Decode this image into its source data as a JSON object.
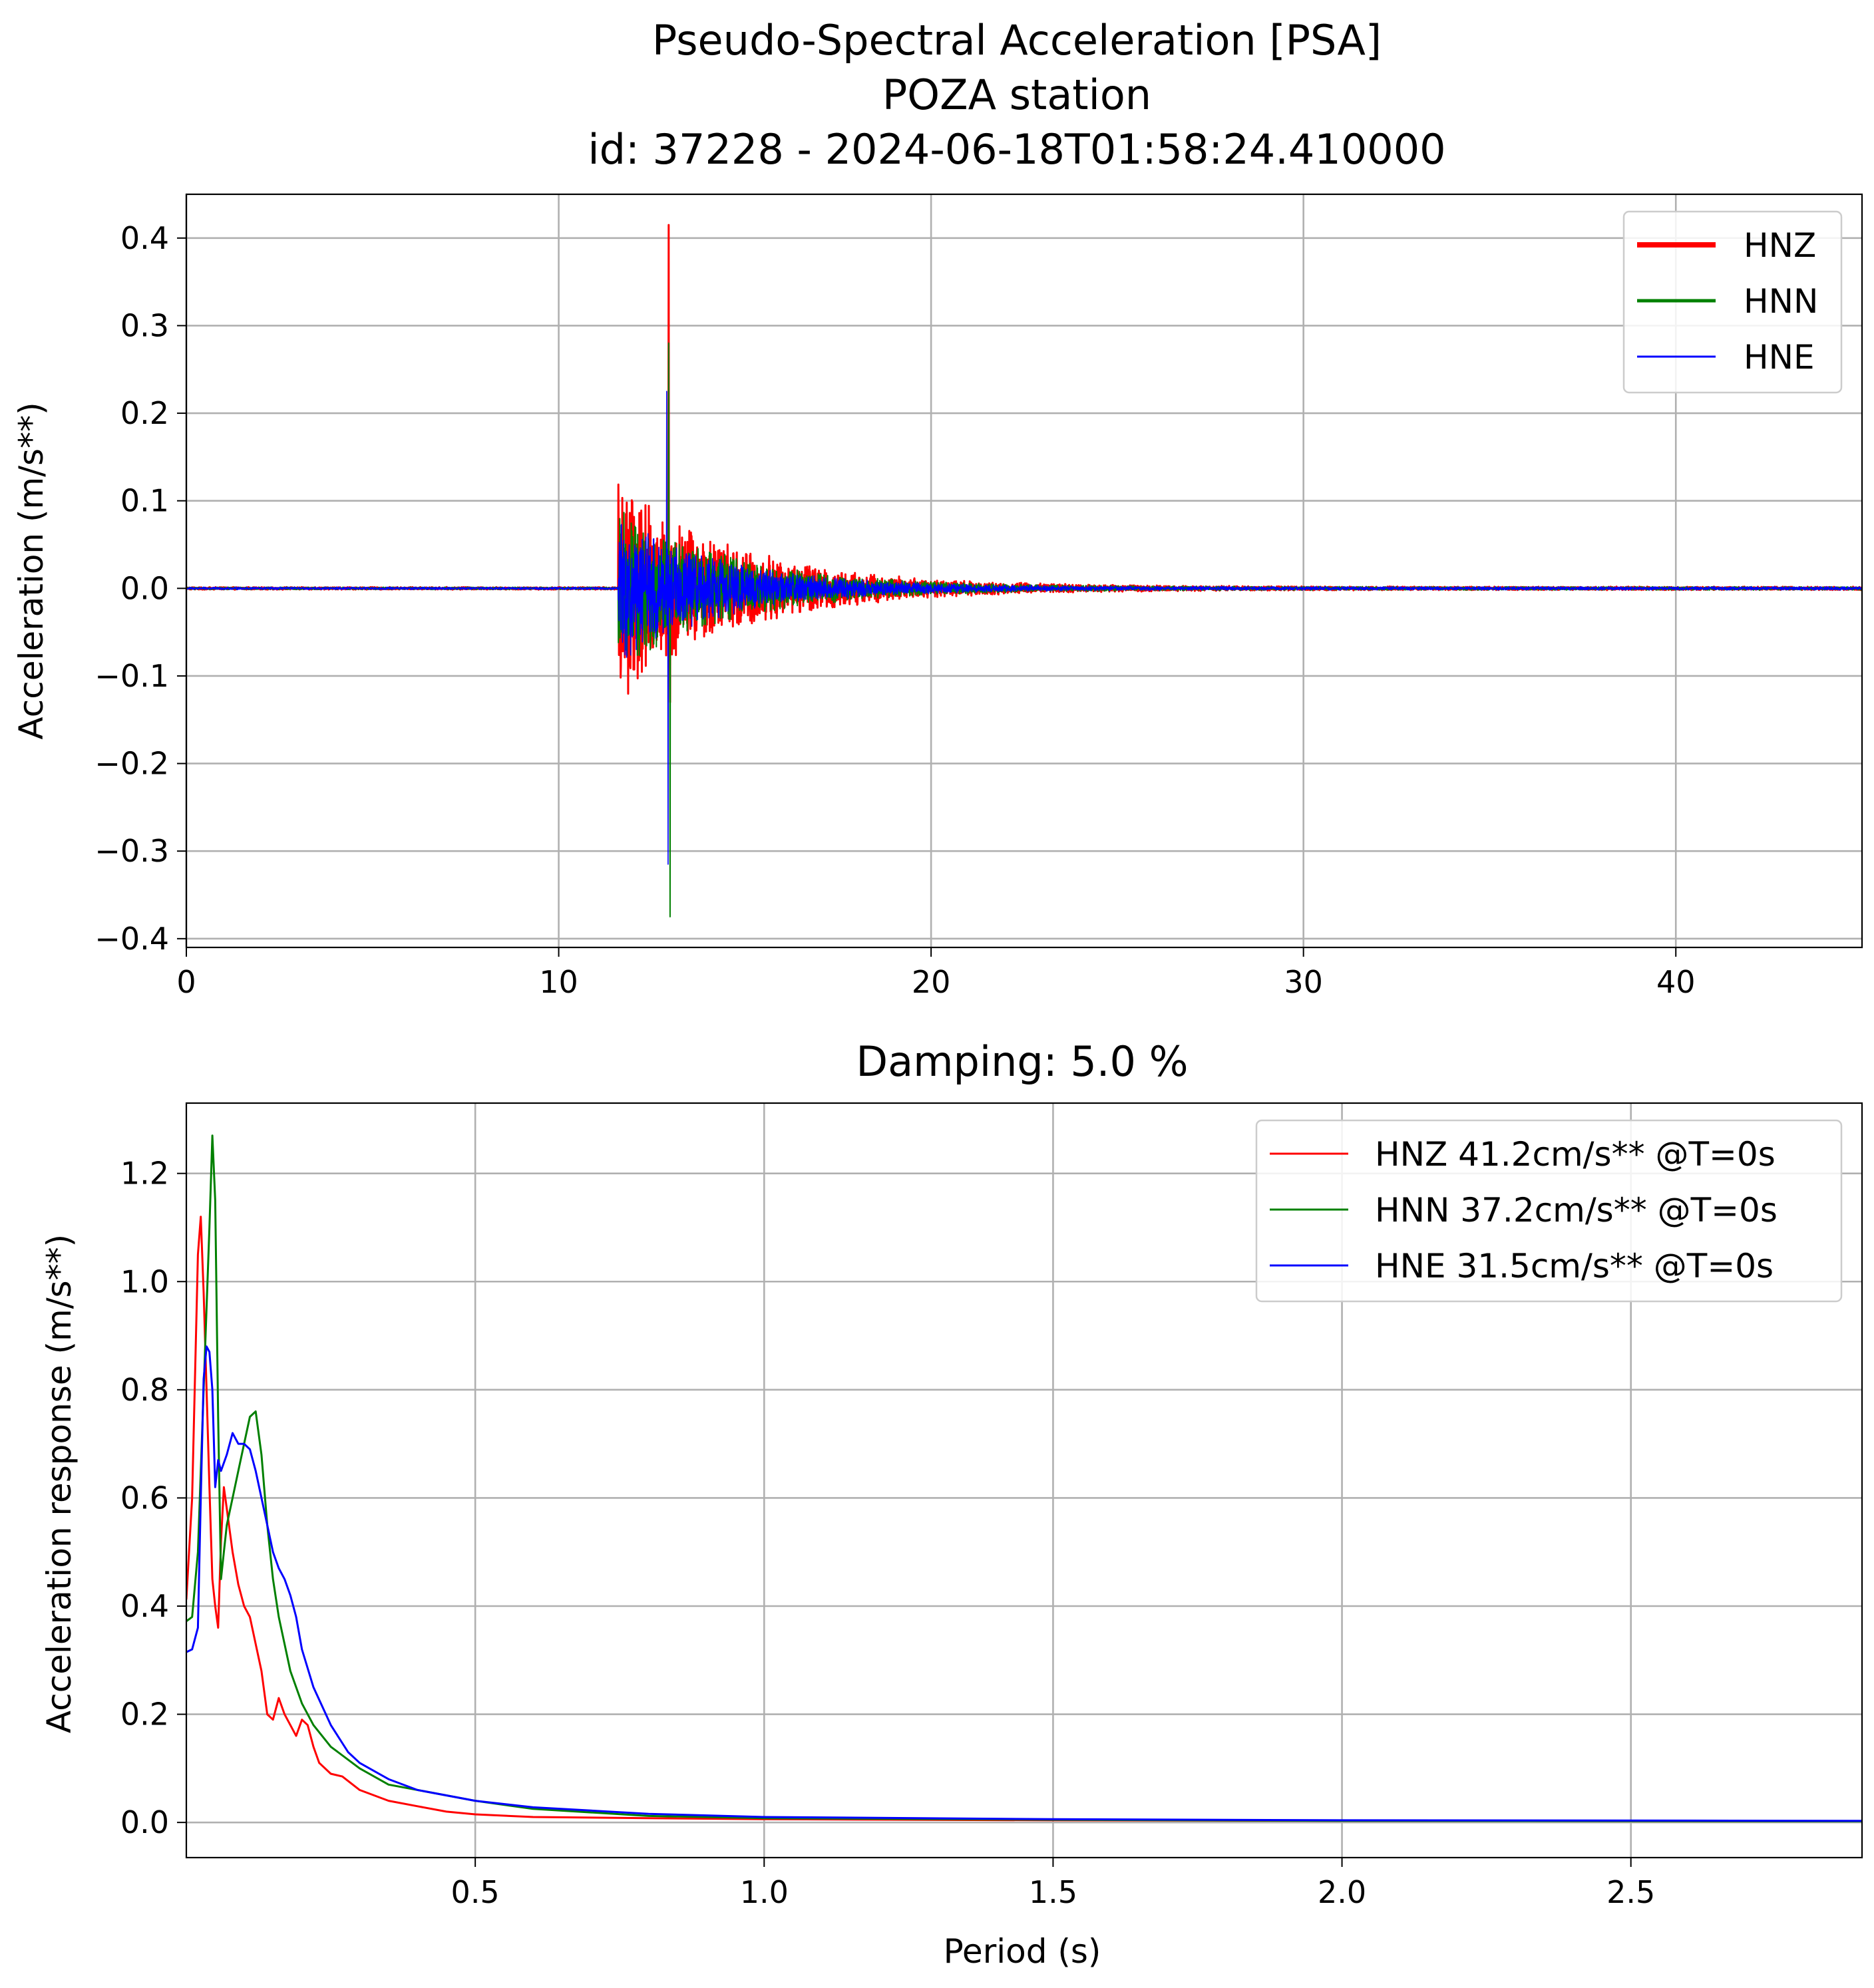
{
  "chart_data": [
    {
      "id": "waveform",
      "type": "line",
      "title_lines": [
        "Pseudo-Spectral Acceleration [PSA]",
        "POZA station",
        "id: 37228 - 2024-06-18T01:58:24.410000"
      ],
      "xlabel": "",
      "ylabel": "Acceleration (m/s**)",
      "xlim": [
        0,
        45
      ],
      "ylim": [
        -0.41,
        0.45
      ],
      "xticks": [
        0,
        10,
        20,
        30,
        40
      ],
      "xtick_labels": [
        "0",
        "10",
        "20",
        "30",
        "40"
      ],
      "yticks": [
        -0.4,
        -0.3,
        -0.2,
        -0.1,
        0.0,
        0.1,
        0.2,
        0.3,
        0.4
      ],
      "ytick_labels": [
        "−0.4",
        "−0.3",
        "−0.2",
        "−0.1",
        "0.0",
        "0.1",
        "0.2",
        "0.3",
        "0.4"
      ],
      "grid": true,
      "legend_position": "upper right",
      "series": [
        {
          "name": "HNZ",
          "legend": "HNZ",
          "color": "#ff0000",
          "width": 3,
          "onset": 11.6,
          "peak_time": 12.95,
          "peak_pos": 0.415,
          "peak_neg": -0.13,
          "envelope": 0.13,
          "decay": 3.2
        },
        {
          "name": "HNN",
          "legend": "HNN",
          "color": "#008000",
          "width": 2,
          "onset": 11.6,
          "peak_time": 12.95,
          "peak_pos": 0.28,
          "peak_neg": -0.375,
          "envelope": 0.1,
          "decay": 3.0
        },
        {
          "name": "HNE",
          "legend": "HNE",
          "color": "#0000ff",
          "width": 1.6,
          "onset": 11.6,
          "peak_time": 12.9,
          "peak_pos": 0.225,
          "peak_neg": -0.315,
          "envelope": 0.085,
          "decay": 2.8
        }
      ]
    },
    {
      "id": "spectrum",
      "type": "line",
      "title": "Damping: 5.0 %",
      "xlabel": "Period (s)",
      "ylabel": "Acceleration response (m/s**)",
      "xlim": [
        0,
        2.9
      ],
      "ylim": [
        -0.065,
        1.33
      ],
      "xticks": [
        0.5,
        1.0,
        1.5,
        2.0,
        2.5
      ],
      "xtick_labels": [
        "0.5",
        "1.0",
        "1.5",
        "2.0",
        "2.5"
      ],
      "yticks": [
        0.0,
        0.2,
        0.4,
        0.6,
        0.8,
        1.0,
        1.2
      ],
      "ytick_labels": [
        "0.0",
        "0.2",
        "0.4",
        "0.6",
        "0.8",
        "1.0",
        "1.2"
      ],
      "grid": true,
      "legend_position": "upper right",
      "series": [
        {
          "name": "HNZ",
          "legend": "HNZ 41.2cm/s** @T=0s",
          "color": "#ff0000",
          "x": [
            0,
            0.01,
            0.02,
            0.025,
            0.03,
            0.035,
            0.04,
            0.045,
            0.05,
            0.055,
            0.06,
            0.065,
            0.07,
            0.08,
            0.09,
            0.1,
            0.11,
            0.12,
            0.13,
            0.14,
            0.15,
            0.16,
            0.17,
            0.18,
            0.19,
            0.2,
            0.21,
            0.22,
            0.23,
            0.25,
            0.27,
            0.3,
            0.35,
            0.4,
            0.45,
            0.5,
            0.6,
            0.8,
            1.0,
            1.5,
            2.0,
            2.9
          ],
          "y": [
            0.412,
            0.6,
            1.05,
            1.12,
            0.98,
            0.8,
            0.62,
            0.45,
            0.4,
            0.36,
            0.52,
            0.62,
            0.58,
            0.5,
            0.44,
            0.4,
            0.38,
            0.33,
            0.28,
            0.2,
            0.19,
            0.23,
            0.2,
            0.18,
            0.16,
            0.19,
            0.18,
            0.14,
            0.11,
            0.09,
            0.085,
            0.06,
            0.04,
            0.03,
            0.02,
            0.015,
            0.01,
            0.008,
            0.006,
            0.004,
            0.003,
            0.002
          ]
        },
        {
          "name": "HNN",
          "legend": "HNN 37.2cm/s** @T=0s",
          "color": "#008000",
          "x": [
            0,
            0.01,
            0.02,
            0.03,
            0.04,
            0.045,
            0.05,
            0.055,
            0.06,
            0.065,
            0.07,
            0.08,
            0.09,
            0.1,
            0.11,
            0.12,
            0.13,
            0.14,
            0.15,
            0.16,
            0.17,
            0.18,
            0.2,
            0.22,
            0.25,
            0.3,
            0.35,
            0.4,
            0.5,
            0.6,
            0.8,
            1.0,
            1.5,
            2.0,
            2.9
          ],
          "y": [
            0.372,
            0.38,
            0.5,
            0.8,
            1.1,
            1.27,
            1.15,
            0.75,
            0.45,
            0.5,
            0.55,
            0.6,
            0.65,
            0.7,
            0.75,
            0.76,
            0.68,
            0.55,
            0.45,
            0.38,
            0.33,
            0.28,
            0.22,
            0.18,
            0.14,
            0.1,
            0.07,
            0.06,
            0.04,
            0.025,
            0.012,
            0.008,
            0.005,
            0.003,
            0.002
          ]
        },
        {
          "name": "HNE",
          "legend": "HNE 31.5cm/s** @T=0s",
          "color": "#0000ff",
          "x": [
            0,
            0.01,
            0.02,
            0.025,
            0.03,
            0.035,
            0.04,
            0.045,
            0.05,
            0.055,
            0.06,
            0.07,
            0.08,
            0.09,
            0.1,
            0.11,
            0.12,
            0.13,
            0.14,
            0.15,
            0.16,
            0.17,
            0.18,
            0.19,
            0.2,
            0.22,
            0.25,
            0.28,
            0.3,
            0.35,
            0.4,
            0.5,
            0.6,
            0.8,
            1.0,
            1.5,
            2.0,
            2.9
          ],
          "y": [
            0.315,
            0.32,
            0.36,
            0.6,
            0.82,
            0.88,
            0.87,
            0.8,
            0.62,
            0.67,
            0.65,
            0.68,
            0.72,
            0.7,
            0.7,
            0.69,
            0.65,
            0.6,
            0.55,
            0.5,
            0.47,
            0.45,
            0.42,
            0.38,
            0.32,
            0.25,
            0.18,
            0.13,
            0.11,
            0.08,
            0.06,
            0.04,
            0.028,
            0.016,
            0.01,
            0.006,
            0.004,
            0.003
          ]
        }
      ]
    }
  ]
}
